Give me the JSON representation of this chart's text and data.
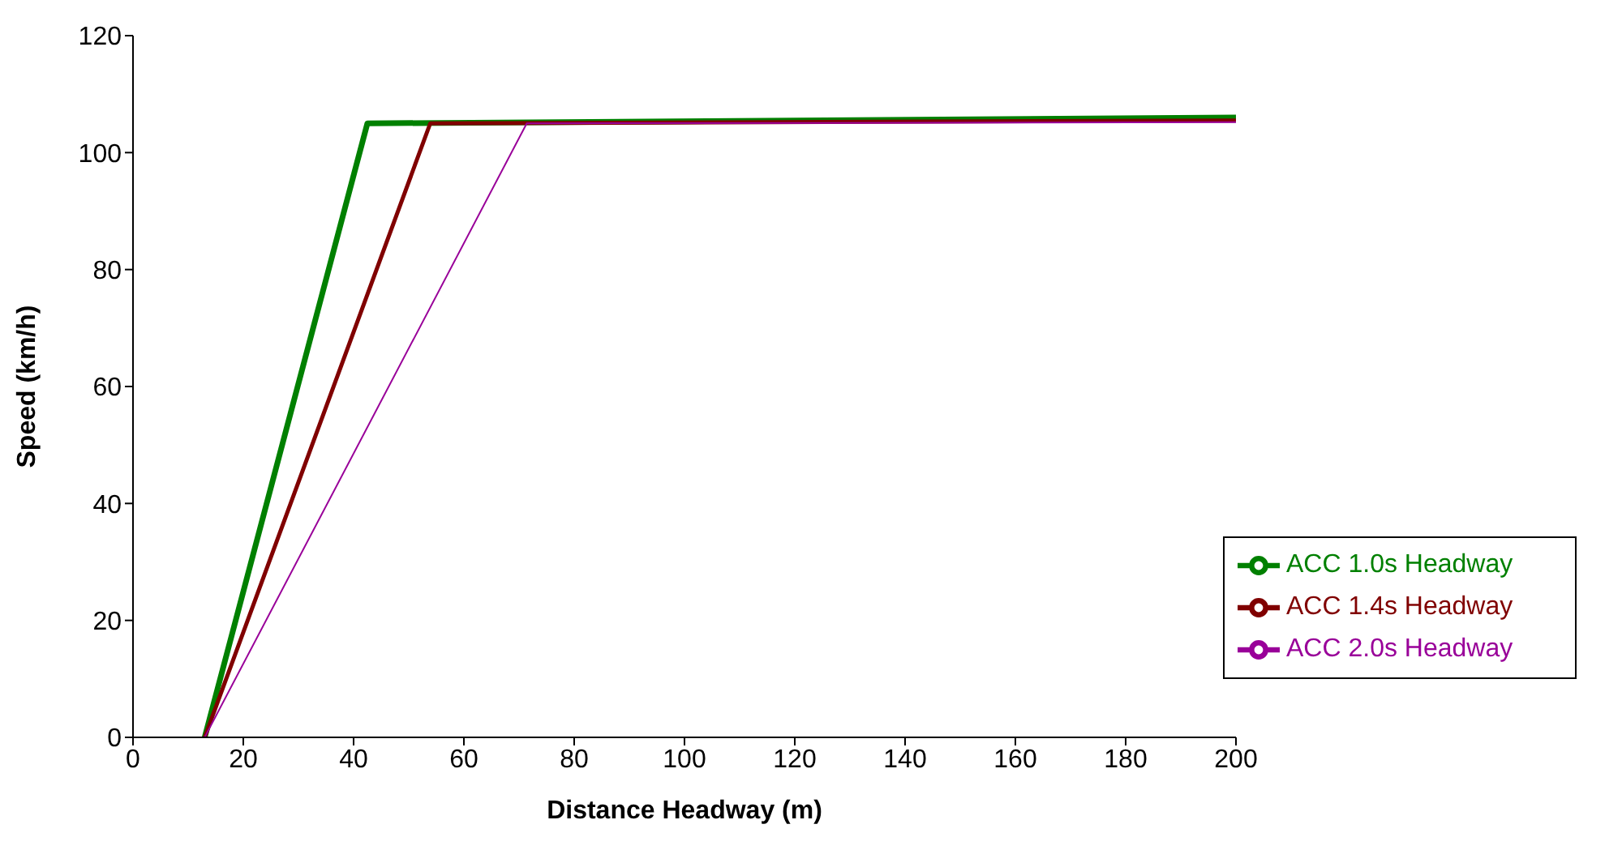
{
  "chart_data": {
    "type": "line",
    "xlabel": "Distance Headway (m)",
    "ylabel": "Speed (km/h)",
    "xlim": [
      0,
      200
    ],
    "xticks": [
      0,
      20,
      40,
      60,
      80,
      100,
      120,
      140,
      160,
      180,
      200
    ],
    "ylim": [
      0,
      120
    ],
    "yticks": [
      0,
      20,
      40,
      60,
      80,
      100,
      120
    ],
    "grid": false,
    "legend": "bottom right",
    "marker": "none",
    "line_style": "solid",
    "series": [
      {
        "name": "ACC 1.0s Headway",
        "color": "#008000",
        "x": [
          13,
          42.5,
          200
        ],
        "values": [
          0,
          105,
          106
        ]
      },
      {
        "name": "ACC 1.4s Headway",
        "color": "#800000",
        "x": [
          13,
          53.9,
          200
        ],
        "values": [
          0,
          105,
          105.5
        ]
      },
      {
        "name": "ACC 2.0s Headway",
        "color": "#990099",
        "x": [
          13,
          71.4,
          200
        ],
        "values": [
          0,
          105,
          105.2
        ]
      }
    ]
  }
}
